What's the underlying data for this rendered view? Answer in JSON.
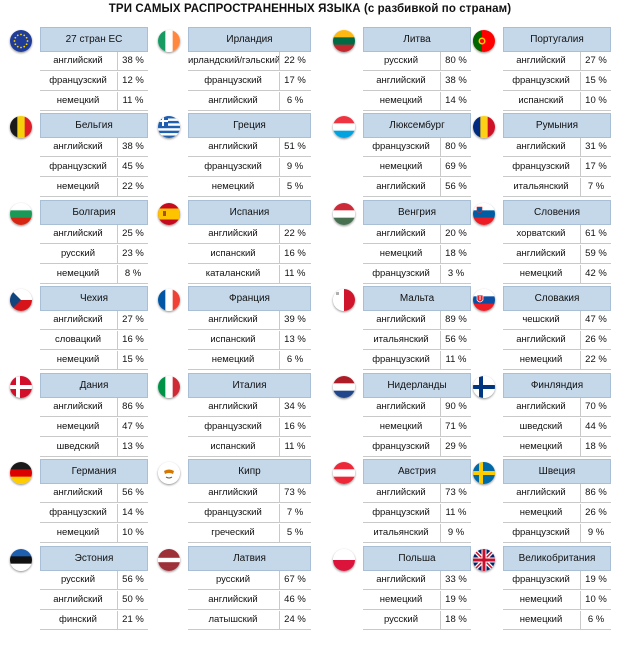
{
  "title": "ТРИ САМЫХ РАСПРОСТРАНЕННЫХ ЯЗЫКА (с разбивкой по странам)",
  "columns": [
    [
      {
        "country": "27 стран ЕС",
        "flag": "eu-flag-icon",
        "languages": [
          [
            "английский",
            "38 %"
          ],
          [
            "французский",
            "12 %"
          ],
          [
            "немецкий",
            "11 %"
          ]
        ]
      },
      {
        "country": "Бельгия",
        "flag": "belgium-flag-icon",
        "languages": [
          [
            "английский",
            "38 %"
          ],
          [
            "французский",
            "45 %"
          ],
          [
            "немецкий",
            "22 %"
          ]
        ]
      },
      {
        "country": "Болгария",
        "flag": "bulgaria-flag-icon",
        "languages": [
          [
            "английский",
            "25 %"
          ],
          [
            "русский",
            "23 %"
          ],
          [
            "немецкий",
            "8 %"
          ]
        ]
      },
      {
        "country": "Чехия",
        "flag": "czechia-flag-icon",
        "languages": [
          [
            "английский",
            "27 %"
          ],
          [
            "словацкий",
            "16 %"
          ],
          [
            "немецкий",
            "15 %"
          ]
        ]
      },
      {
        "country": "Дания",
        "flag": "denmark-flag-icon",
        "languages": [
          [
            "английский",
            "86 %"
          ],
          [
            "немецкий",
            "47 %"
          ],
          [
            "шведский",
            "13 %"
          ]
        ]
      },
      {
        "country": "Германия",
        "flag": "germany-flag-icon",
        "languages": [
          [
            "английский",
            "56 %"
          ],
          [
            "французский",
            "14 %"
          ],
          [
            "немецкий",
            "10 %"
          ]
        ]
      },
      {
        "country": "Эстония",
        "flag": "estonia-flag-icon",
        "languages": [
          [
            "русский",
            "56 %"
          ],
          [
            "английский",
            "50 %"
          ],
          [
            "финский",
            "21 %"
          ]
        ]
      }
    ],
    [
      {
        "country": "Ирландия",
        "flag": "ireland-flag-icon",
        "languages": [
          [
            "ирландский/гэльский",
            "22 %"
          ],
          [
            "французский",
            "17 %"
          ],
          [
            "английский",
            "6 %"
          ]
        ]
      },
      {
        "country": "Греция",
        "flag": "greece-flag-icon",
        "languages": [
          [
            "английский",
            "51 %"
          ],
          [
            "французский",
            "9 %"
          ],
          [
            "немецкий",
            "5 %"
          ]
        ]
      },
      {
        "country": "Испания",
        "flag": "spain-flag-icon",
        "languages": [
          [
            "английский",
            "22 %"
          ],
          [
            "испанский",
            "16 %"
          ],
          [
            "каталанский",
            "11 %"
          ]
        ]
      },
      {
        "country": "Франция",
        "flag": "france-flag-icon",
        "languages": [
          [
            "английский",
            "39 %"
          ],
          [
            "испанский",
            "13 %"
          ],
          [
            "немецкий",
            "6 %"
          ]
        ]
      },
      {
        "country": "Италия",
        "flag": "italy-flag-icon",
        "languages": [
          [
            "английский",
            "34 %"
          ],
          [
            "французский",
            "16 %"
          ],
          [
            "испанский",
            "11 %"
          ]
        ]
      },
      {
        "country": "Кипр",
        "flag": "cyprus-flag-icon",
        "languages": [
          [
            "английский",
            "73 %"
          ],
          [
            "французский",
            "7 %"
          ],
          [
            "греческий",
            "5 %"
          ]
        ]
      },
      {
        "country": "Латвия",
        "flag": "latvia-flag-icon",
        "languages": [
          [
            "русский",
            "67 %"
          ],
          [
            "английский",
            "46 %"
          ],
          [
            "латышский",
            "24 %"
          ]
        ]
      }
    ],
    [
      {
        "country": "Литва",
        "flag": "lithuania-flag-icon",
        "languages": [
          [
            "русский",
            "80 %"
          ],
          [
            "английский",
            "38 %"
          ],
          [
            "немецкий",
            "14 %"
          ]
        ]
      },
      {
        "country": "Люксембург",
        "flag": "luxembourg-flag-icon",
        "languages": [
          [
            "французский",
            "80 %"
          ],
          [
            "немецкий",
            "69 %"
          ],
          [
            "английский",
            "56 %"
          ]
        ]
      },
      {
        "country": "Венгрия",
        "flag": "hungary-flag-icon",
        "languages": [
          [
            "английский",
            "20 %"
          ],
          [
            "немецкий",
            "18 %"
          ],
          [
            "французский",
            "3 %"
          ]
        ]
      },
      {
        "country": "Мальта",
        "flag": "malta-flag-icon",
        "languages": [
          [
            "английский",
            "89 %"
          ],
          [
            "итальянский",
            "56 %"
          ],
          [
            "французский",
            "11 %"
          ]
        ]
      },
      {
        "country": "Нидерланды",
        "flag": "netherlands-flag-icon",
        "languages": [
          [
            "английский",
            "90 %"
          ],
          [
            "немецкий",
            "71 %"
          ],
          [
            "французский",
            "29 %"
          ]
        ]
      },
      {
        "country": "Австрия",
        "flag": "austria-flag-icon",
        "languages": [
          [
            "английский",
            "73 %"
          ],
          [
            "французский",
            "11 %"
          ],
          [
            "итальянский",
            "9 %"
          ]
        ]
      },
      {
        "country": "Польша",
        "flag": "poland-flag-icon",
        "languages": [
          [
            "английский",
            "33 %"
          ],
          [
            "немецкий",
            "19 %"
          ],
          [
            "русский",
            "18 %"
          ]
        ]
      }
    ],
    [
      {
        "country": "Португалия",
        "flag": "portugal-flag-icon",
        "languages": [
          [
            "английский",
            "27 %"
          ],
          [
            "французский",
            "15 %"
          ],
          [
            "испанский",
            "10 %"
          ]
        ]
      },
      {
        "country": "Румыния",
        "flag": "romania-flag-icon",
        "languages": [
          [
            "английский",
            "31 %"
          ],
          [
            "французский",
            "17 %"
          ],
          [
            "итальянский",
            "7 %"
          ]
        ]
      },
      {
        "country": "Словения",
        "flag": "slovenia-flag-icon",
        "languages": [
          [
            "хорватский",
            "61 %"
          ],
          [
            "английский",
            "59 %"
          ],
          [
            "немецкий",
            "42 %"
          ]
        ]
      },
      {
        "country": "Словакия",
        "flag": "slovakia-flag-icon",
        "languages": [
          [
            "чешский",
            "47 %"
          ],
          [
            "английский",
            "26 %"
          ],
          [
            "немецкий",
            "22 %"
          ]
        ]
      },
      {
        "country": "Финляндия",
        "flag": "finland-flag-icon",
        "languages": [
          [
            "английский",
            "70 %"
          ],
          [
            "шведский",
            "44 %"
          ],
          [
            "немецкий",
            "18 %"
          ]
        ]
      },
      {
        "country": "Швеция",
        "flag": "sweden-flag-icon",
        "languages": [
          [
            "английский",
            "86 %"
          ],
          [
            "немецкий",
            "26 %"
          ],
          [
            "французский",
            "9 %"
          ]
        ]
      },
      {
        "country": "Великобритания",
        "flag": "uk-flag-icon",
        "languages": [
          [
            "французский",
            "19 %"
          ],
          [
            "немецкий",
            "10 %"
          ],
          [
            "немецкий",
            "6 %"
          ]
        ]
      }
    ]
  ]
}
